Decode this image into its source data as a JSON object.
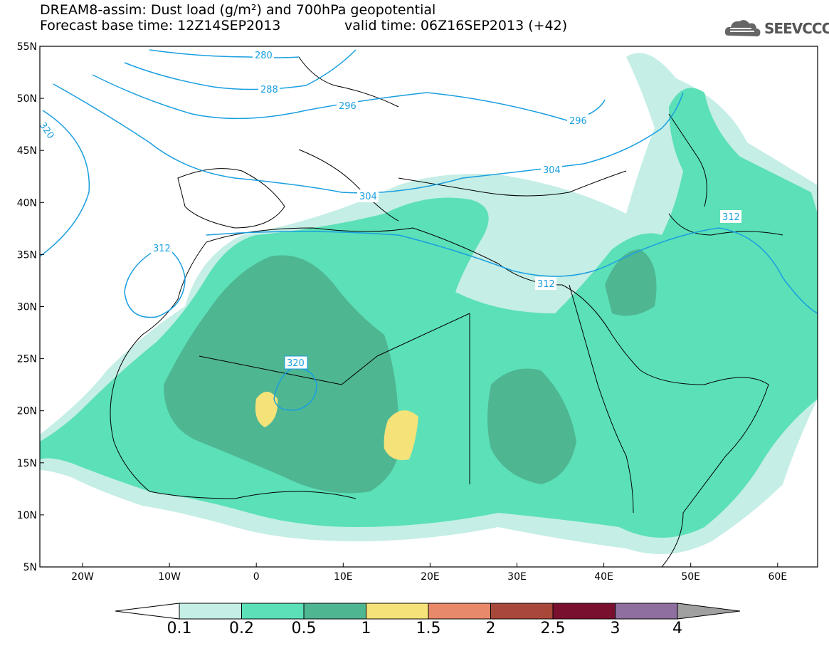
{
  "header": {
    "title_line1": "DREAM8-assim: Dust load (g/m²) and 700hPa geopotential",
    "title_line2_base": "Forecast base time: 12Z14SEP2013",
    "title_line2_valid": "valid time: 06Z16SEP2013 (+42)"
  },
  "logo": {
    "text": "SEEVCCC"
  },
  "map": {
    "lat_labels": [
      "55N",
      "50N",
      "45N",
      "40N",
      "35N",
      "30N",
      "25N",
      "20N",
      "15N",
      "10N",
      "5N"
    ],
    "lon_labels": [
      "20W",
      "10W",
      "0",
      "10E",
      "20E",
      "30E",
      "40E",
      "50E",
      "60E"
    ],
    "contour_labels": {
      "c280": "280",
      "c288": "288",
      "c296a": "296",
      "c296b": "296",
      "c304a": "304",
      "c304b": "304",
      "c312a": "312",
      "c312b": "312",
      "c312c": "312",
      "c320a": "320",
      "c320b": "320"
    },
    "colors": {
      "dust_0_1": "#c4eee6",
      "dust_0_2": "#5be0b8",
      "dust_0_5": "#4fb692",
      "dust_1": "#f5e37a",
      "contour": "#1a9fe0",
      "coast": "#000000"
    }
  },
  "colorbar": {
    "labels": [
      "0.1",
      "0.2",
      "0.5",
      "1",
      "1.5",
      "2",
      "2.5",
      "3",
      "4"
    ],
    "colors": [
      "#c4eee6",
      "#5be0b8",
      "#4fb692",
      "#f5e37a",
      "#e8896a",
      "#a8483a",
      "#7a1030",
      "#8f6ea0"
    ],
    "under_color": "#ffffff",
    "over_color": "#a0a0a0"
  }
}
